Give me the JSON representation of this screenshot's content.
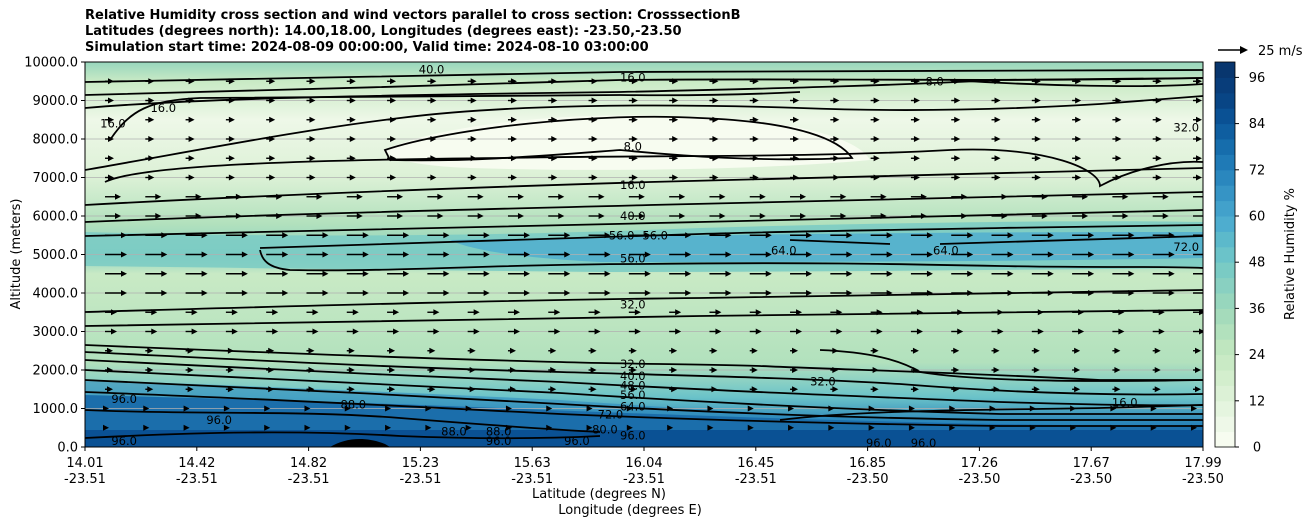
{
  "title": {
    "line1": "Relative Humidity cross section and wind vectors parallel to cross section: CrosssectionB",
    "line2": "Latitudes (degrees north): 14.00,18.00, Longitudes (degrees east): -23.50,-23.50",
    "line3": "Simulation start time: 2024-08-09 00:00:00, Valid time: 2024-08-10 03:00:00"
  },
  "quiver_key": "25 m/s",
  "colorbar": {
    "label": "Relative Humidity %",
    "ticks": [
      "0",
      "12",
      "24",
      "36",
      "48",
      "60",
      "72",
      "84",
      "96"
    ],
    "range": [
      0,
      100
    ],
    "levels": 25,
    "colors": [
      "#f7fcf0",
      "#eef8e8",
      "#e5f5df",
      "#dcf1d6",
      "#d3eecd",
      "#c9eac5",
      "#bfe6bf",
      "#b2e1bd",
      "#a5dbbb",
      "#97d6bd",
      "#89d0c1",
      "#7acbc4",
      "#6bc3c9",
      "#5cb9cb",
      "#4eadcf",
      "#42a1cb",
      "#3694c5",
      "#2a87be",
      "#1f7ab6",
      "#166dac",
      "#0f5ea0",
      "#0a5194",
      "#084585",
      "#083d7a",
      "#08366e"
    ]
  },
  "chart_data": {
    "type": "contour",
    "title": "Relative Humidity cross section and wind vectors parallel to cross section: CrosssectionB",
    "ylabel": "Altitude (meters)",
    "xlabel_line1": "Latitude (degrees N)",
    "xlabel_line2": "Longitude (degrees E)",
    "ylim": [
      0,
      10000
    ],
    "yticks": [
      "0.0",
      "1000.0",
      "2000.0",
      "3000.0",
      "4000.0",
      "5000.0",
      "6000.0",
      "7000.0",
      "8000.0",
      "9000.0",
      "10000.0"
    ],
    "xticks": [
      {
        "lat": "14.01",
        "lon": "-23.51"
      },
      {
        "lat": "14.42",
        "lon": "-23.51"
      },
      {
        "lat": "14.82",
        "lon": "-23.51"
      },
      {
        "lat": "15.23",
        "lon": "-23.51"
      },
      {
        "lat": "15.63",
        "lon": "-23.51"
      },
      {
        "lat": "16.04",
        "lon": "-23.51"
      },
      {
        "lat": "16.45",
        "lon": "-23.51"
      },
      {
        "lat": "16.85",
        "lon": "-23.50"
      },
      {
        "lat": "17.26",
        "lon": "-23.50"
      },
      {
        "lat": "17.67",
        "lon": "-23.50"
      },
      {
        "lat": "17.99",
        "lon": "-23.50"
      }
    ],
    "grid": "horizontal",
    "contour_labels": [
      {
        "text": "40.0",
        "x": 0.31,
        "y": 9800
      },
      {
        "text": "16.0",
        "x": 0.49,
        "y": 9600
      },
      {
        "text": "16.0",
        "x": 0.07,
        "y": 8800
      },
      {
        "text": "16.0",
        "x": 0.025,
        "y": 8400
      },
      {
        "text": "8.0",
        "x": 0.49,
        "y": 7800
      },
      {
        "text": "8.0",
        "x": 0.76,
        "y": 9500
      },
      {
        "text": "32.0",
        "x": 0.985,
        "y": 8300
      },
      {
        "text": "16.0",
        "x": 0.49,
        "y": 6800
      },
      {
        "text": "40.0",
        "x": 0.49,
        "y": 6000
      },
      {
        "text": "56.0",
        "x": 0.48,
        "y": 5500
      },
      {
        "text": "56.0",
        "x": 0.51,
        "y": 5500
      },
      {
        "text": "64.0",
        "x": 0.625,
        "y": 5100
      },
      {
        "text": "64.0",
        "x": 0.77,
        "y": 5100
      },
      {
        "text": "72.0",
        "x": 0.985,
        "y": 5200
      },
      {
        "text": "56.0",
        "x": 0.49,
        "y": 4900
      },
      {
        "text": "32.0",
        "x": 0.49,
        "y": 3700
      },
      {
        "text": "32.0",
        "x": 0.49,
        "y": 2150
      },
      {
        "text": "40.0",
        "x": 0.49,
        "y": 1850
      },
      {
        "text": "48.0",
        "x": 0.49,
        "y": 1600
      },
      {
        "text": "56.0",
        "x": 0.49,
        "y": 1350
      },
      {
        "text": "64.0",
        "x": 0.49,
        "y": 1050
      },
      {
        "text": "72.0",
        "x": 0.47,
        "y": 850
      },
      {
        "text": "80.0",
        "x": 0.465,
        "y": 450
      },
      {
        "text": "96.0",
        "x": 0.49,
        "y": 300
      },
      {
        "text": "32.0",
        "x": 0.66,
        "y": 1700
      },
      {
        "text": "16.0",
        "x": 0.93,
        "y": 1150
      },
      {
        "text": "96.0",
        "x": 0.035,
        "y": 1250
      },
      {
        "text": "96.0",
        "x": 0.12,
        "y": 700
      },
      {
        "text": "88.0",
        "x": 0.24,
        "y": 1100
      },
      {
        "text": "88.0",
        "x": 0.33,
        "y": 400
      },
      {
        "text": "88.0",
        "x": 0.37,
        "y": 400
      },
      {
        "text": "96.0",
        "x": 0.37,
        "y": 150
      },
      {
        "text": "96.0",
        "x": 0.44,
        "y": 150
      },
      {
        "text": "96.0",
        "x": 0.035,
        "y": 150
      },
      {
        "text": "96.0",
        "x": 0.71,
        "y": 100
      },
      {
        "text": "96.0",
        "x": 0.75,
        "y": 100
      }
    ]
  }
}
